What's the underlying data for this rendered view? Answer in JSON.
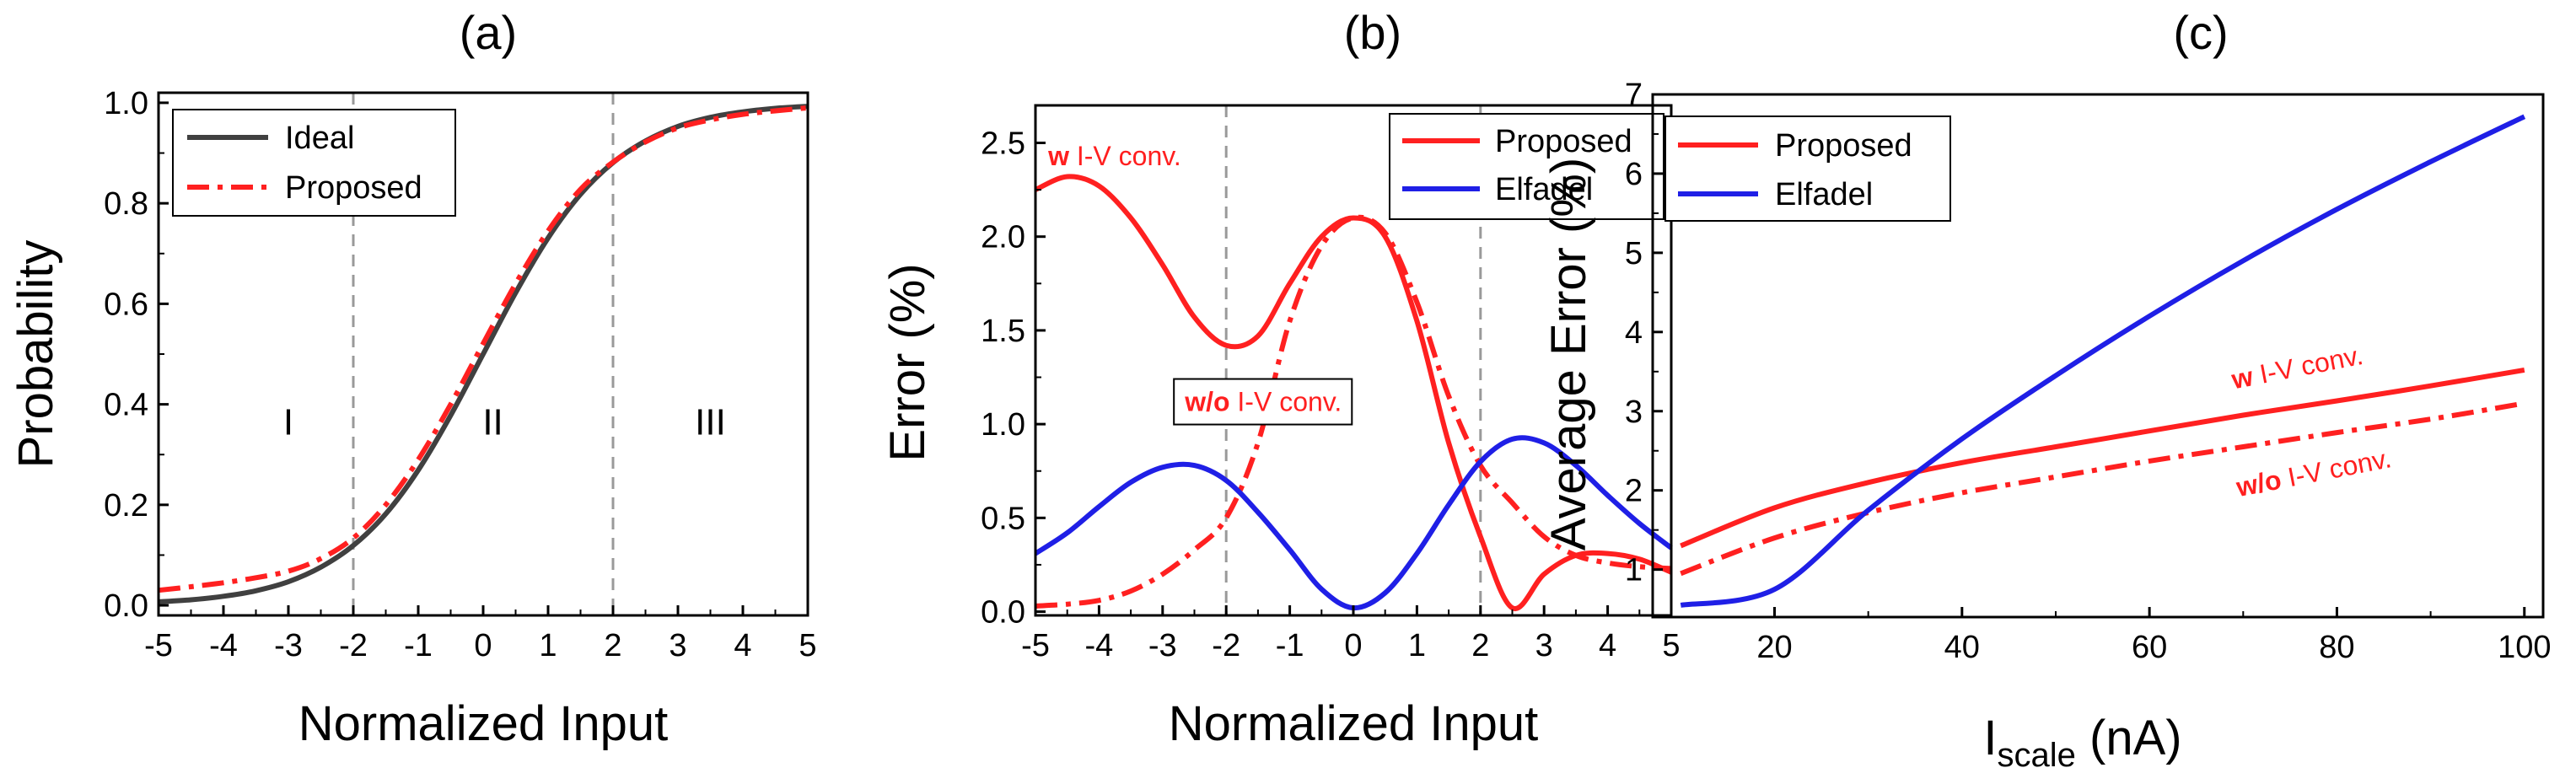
{
  "colors": {
    "ideal": "#404040",
    "proposed": "#ff2020",
    "elfadel": "#1f1fe6",
    "grid": "#999999"
  },
  "chart_data": [
    {
      "id": "a",
      "type": "line",
      "title": "(a)",
      "xlabel": "Normalized Input",
      "ylabel": "Probability",
      "xlim": [
        -5,
        5
      ],
      "ylim": [
        -0.02,
        1.02
      ],
      "xticks": [
        -5,
        -4,
        -3,
        -2,
        -1,
        0,
        1,
        2,
        3,
        4,
        5
      ],
      "xtick_labels": [
        "-5",
        "-4",
        "-3",
        "-2",
        "-1",
        "0",
        "1",
        "2",
        "3",
        "4",
        "5"
      ],
      "yticks": [
        0.0,
        0.2,
        0.4,
        0.6,
        0.8,
        1.0
      ],
      "ytick_labels": [
        "0.0",
        "0.2",
        "0.4",
        "0.6",
        "0.8",
        "1.0"
      ],
      "vlines": [
        -2,
        2
      ],
      "regions": [
        {
          "label": "I",
          "x": -3.0,
          "y": 0.34
        },
        {
          "label": "II",
          "x": 0.15,
          "y": 0.34
        },
        {
          "label": "III",
          "x": 3.5,
          "y": 0.34
        }
      ],
      "legend": [
        "Ideal",
        "Proposed"
      ],
      "series": [
        {
          "name": "Ideal",
          "style": "solid",
          "x": [
            -5,
            -4.5,
            -4,
            -3.5,
            -3,
            -2.5,
            -2,
            -1.5,
            -1,
            -0.5,
            0,
            0.5,
            1,
            1.5,
            2,
            2.5,
            3,
            3.5,
            4,
            4.5,
            5
          ],
          "y": [
            0.007,
            0.011,
            0.018,
            0.029,
            0.047,
            0.076,
            0.119,
            0.182,
            0.269,
            0.378,
            0.5,
            0.622,
            0.731,
            0.818,
            0.881,
            0.924,
            0.953,
            0.971,
            0.982,
            0.989,
            0.993
          ]
        },
        {
          "name": "Proposed",
          "style": "dashdot",
          "x": [
            -5,
            -4.5,
            -4,
            -3.5,
            -3,
            -2.5,
            -2,
            -1.5,
            -1,
            -0.5,
            0,
            0.5,
            1,
            1.5,
            2,
            2.5,
            3,
            3.5,
            4,
            4.5,
            5
          ],
          "y": [
            0.03,
            0.037,
            0.045,
            0.055,
            0.068,
            0.093,
            0.134,
            0.2,
            0.29,
            0.4,
            0.521,
            0.64,
            0.745,
            0.828,
            0.882,
            0.922,
            0.95,
            0.966,
            0.977,
            0.984,
            0.99
          ]
        }
      ]
    },
    {
      "id": "b",
      "type": "line",
      "title": "(b)",
      "xlabel": "Normalized Input",
      "ylabel": "Error (%)",
      "xlim": [
        -5,
        5
      ],
      "ylim": [
        -0.02,
        2.7
      ],
      "xticks": [
        -5,
        -4,
        -3,
        -2,
        -1,
        0,
        1,
        2,
        3,
        4,
        5
      ],
      "xtick_labels": [
        "-5",
        "-4",
        "-3",
        "-2",
        "-1",
        "0",
        "1",
        "2",
        "3",
        "4",
        "5"
      ],
      "yticks": [
        0.0,
        0.5,
        1.0,
        1.5,
        2.0,
        2.5
      ],
      "ytick_labels": [
        "0.0",
        "0.5",
        "1.0",
        "1.5",
        "2.0",
        "2.5"
      ],
      "vlines": [
        -2,
        2
      ],
      "legend": [
        "Proposed",
        "Elfadel"
      ],
      "annotations": [
        {
          "bold": "w",
          "rest": " I-V conv.",
          "x": -4.8,
          "y": 2.38,
          "boxed": false
        },
        {
          "bold": "w/o",
          "rest": " I-V conv.",
          "x": -2.65,
          "y": 1.07,
          "boxed": true
        }
      ],
      "series": [
        {
          "name": "Proposed (w I-V conv.)",
          "color": "proposed",
          "style": "solid",
          "x": [
            -5,
            -4.5,
            -4,
            -3.5,
            -3,
            -2.5,
            -2,
            -1.5,
            -1,
            -0.5,
            0,
            0.5,
            1,
            1.5,
            2,
            2.5,
            3,
            3.5,
            4,
            4.5,
            5
          ],
          "y": [
            2.25,
            2.32,
            2.27,
            2.1,
            1.85,
            1.57,
            1.42,
            1.47,
            1.75,
            2.0,
            2.1,
            2.0,
            1.55,
            0.9,
            0.4,
            0.02,
            0.2,
            0.3,
            0.31,
            0.28,
            0.21
          ]
        },
        {
          "name": "Proposed (w/o I-V conv.)",
          "color": "proposed",
          "style": "dashdot",
          "x": [
            -5,
            -4.5,
            -4,
            -3.5,
            -3,
            -2.5,
            -2,
            -1.5,
            -1,
            -0.5,
            0,
            0.5,
            1,
            1.5,
            2,
            2.5,
            3,
            3.5,
            4,
            4.5,
            5
          ],
          "y": [
            0.03,
            0.04,
            0.06,
            0.11,
            0.2,
            0.33,
            0.5,
            0.9,
            1.55,
            1.95,
            2.1,
            2.02,
            1.65,
            1.15,
            0.78,
            0.58,
            0.4,
            0.3,
            0.26,
            0.24,
            0.23
          ]
        },
        {
          "name": "Elfadel",
          "color": "elfadel",
          "style": "solid",
          "x": [
            -5,
            -4.5,
            -4,
            -3.5,
            -3,
            -2.5,
            -2,
            -1.5,
            -1,
            -0.5,
            0,
            0.5,
            1,
            1.5,
            2,
            2.5,
            3,
            3.5,
            4,
            4.5,
            5
          ],
          "y": [
            0.31,
            0.42,
            0.56,
            0.69,
            0.77,
            0.78,
            0.7,
            0.53,
            0.33,
            0.12,
            0.02,
            0.1,
            0.31,
            0.57,
            0.8,
            0.92,
            0.9,
            0.78,
            0.62,
            0.47,
            0.34
          ]
        }
      ]
    },
    {
      "id": "c",
      "type": "line",
      "title": "(c)",
      "xlabel_main": "I",
      "xlabel_sub": "scale",
      "xlabel_unit": " (nA)",
      "ylabel": "Average Error (%)",
      "xlim": [
        7,
        102
      ],
      "ylim": [
        0.4,
        7.0
      ],
      "xticks": [
        20,
        40,
        60,
        80,
        100
      ],
      "xtick_labels": [
        "20",
        "40",
        "60",
        "80",
        "100"
      ],
      "yticks": [
        1,
        2,
        3,
        4,
        5,
        6,
        7
      ],
      "ytick_labels": [
        "1",
        "2",
        "3",
        "4",
        "5",
        "6",
        "7"
      ],
      "legend": [
        "Proposed",
        "Elfadel"
      ],
      "annotations": [
        {
          "bold": "w",
          "rest": " I-V conv.",
          "x": 69,
          "y": 3.28,
          "angle": -11
        },
        {
          "bold": "w/o",
          "rest": " I-V conv.",
          "x": 69.5,
          "y": 1.92,
          "angle": -11
        }
      ],
      "series": [
        {
          "name": "Proposed (w I-V conv.)",
          "color": "proposed",
          "style": "solid",
          "x": [
            10,
            20,
            30,
            40,
            50,
            60,
            70,
            80,
            90,
            100
          ],
          "y": [
            1.3,
            1.78,
            2.1,
            2.35,
            2.55,
            2.75,
            2.95,
            3.13,
            3.32,
            3.52
          ]
        },
        {
          "name": "Proposed (w/o I-V conv.)",
          "color": "proposed",
          "style": "dashdot",
          "x": [
            10,
            20,
            30,
            40,
            50,
            60,
            70,
            80,
            90,
            100
          ],
          "y": [
            0.95,
            1.4,
            1.72,
            1.97,
            2.17,
            2.37,
            2.55,
            2.73,
            2.9,
            3.1
          ]
        },
        {
          "name": "Elfadel",
          "color": "elfadel",
          "style": "solid",
          "x": [
            10,
            20,
            30,
            40,
            50,
            60,
            70,
            80,
            90,
            100
          ],
          "y": [
            0.55,
            0.75,
            1.75,
            2.65,
            3.45,
            4.2,
            4.9,
            5.55,
            6.15,
            6.72
          ]
        }
      ]
    }
  ]
}
